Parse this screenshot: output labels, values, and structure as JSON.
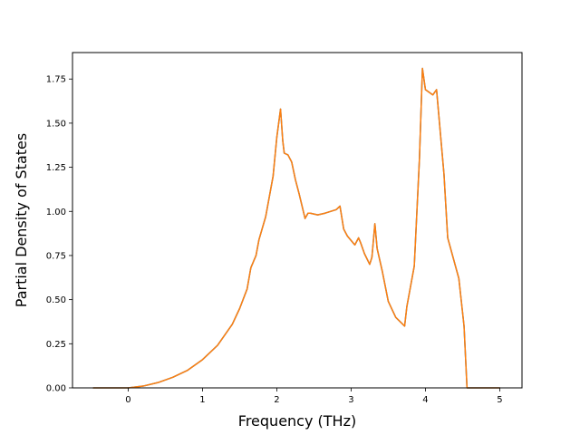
{
  "chart_data": {
    "type": "line",
    "title": "",
    "xlabel": "Frequency (THz)",
    "ylabel": "Partial Density of States",
    "xlim": [
      -0.75,
      5.3
    ],
    "ylim": [
      0,
      1.9
    ],
    "x_ticks": [
      0,
      1,
      2,
      3,
      4,
      5
    ],
    "x_tick_labels": [
      "0",
      "1",
      "2",
      "3",
      "4",
      "5"
    ],
    "y_ticks": [
      0.0,
      0.25,
      0.5,
      0.75,
      1.0,
      1.25,
      1.5,
      1.75
    ],
    "y_tick_labels": [
      "0.00",
      "0.25",
      "0.50",
      "0.75",
      "1.00",
      "1.25",
      "1.50",
      "1.75"
    ],
    "grid": false,
    "legend": "none",
    "series": [
      {
        "color": "#1f77b4",
        "x": [
          -0.47,
          0.0,
          0.2,
          0.4,
          0.6,
          0.8,
          1.0,
          1.2,
          1.4,
          1.5,
          1.6,
          1.65,
          1.72,
          1.76,
          1.85,
          1.95,
          2.0,
          2.05,
          2.08,
          2.1,
          2.15,
          2.2,
          2.25,
          2.3,
          2.38,
          2.42,
          2.45,
          2.55,
          2.65,
          2.8,
          2.85,
          2.9,
          2.95,
          3.05,
          3.1,
          3.13,
          3.18,
          3.25,
          3.28,
          3.32,
          3.35,
          3.42,
          3.5,
          3.6,
          3.72,
          3.75,
          3.85,
          3.92,
          3.96,
          4.0,
          4.1,
          4.15,
          4.25,
          4.3,
          4.45,
          4.52,
          4.56,
          4.6,
          5.0
        ],
        "y": [
          0.0,
          0.0,
          0.01,
          0.03,
          0.06,
          0.1,
          0.16,
          0.24,
          0.36,
          0.45,
          0.56,
          0.68,
          0.75,
          0.84,
          0.97,
          1.2,
          1.42,
          1.58,
          1.4,
          1.33,
          1.32,
          1.28,
          1.18,
          1.1,
          0.96,
          0.99,
          0.99,
          0.98,
          0.99,
          1.01,
          1.03,
          0.9,
          0.86,
          0.81,
          0.85,
          0.82,
          0.76,
          0.7,
          0.74,
          0.93,
          0.79,
          0.66,
          0.49,
          0.4,
          0.35,
          0.46,
          0.69,
          1.3,
          1.81,
          1.69,
          1.66,
          1.69,
          1.21,
          0.85,
          0.62,
          0.35,
          0.0,
          0.0,
          0.0
        ]
      },
      {
        "color": "#ff7f0e",
        "x": [
          -0.47,
          0.0,
          0.2,
          0.4,
          0.6,
          0.8,
          1.0,
          1.2,
          1.4,
          1.5,
          1.6,
          1.65,
          1.72,
          1.76,
          1.85,
          1.95,
          2.0,
          2.05,
          2.08,
          2.1,
          2.15,
          2.2,
          2.25,
          2.3,
          2.38,
          2.42,
          2.45,
          2.55,
          2.65,
          2.8,
          2.85,
          2.9,
          2.95,
          3.05,
          3.1,
          3.13,
          3.18,
          3.25,
          3.28,
          3.32,
          3.35,
          3.42,
          3.5,
          3.6,
          3.72,
          3.75,
          3.85,
          3.92,
          3.96,
          4.0,
          4.1,
          4.15,
          4.25,
          4.3,
          4.45,
          4.52,
          4.56,
          4.6,
          5.0
        ],
        "y": [
          0.0,
          0.0,
          0.01,
          0.03,
          0.06,
          0.1,
          0.16,
          0.24,
          0.36,
          0.45,
          0.56,
          0.68,
          0.75,
          0.84,
          0.97,
          1.2,
          1.42,
          1.58,
          1.4,
          1.33,
          1.32,
          1.28,
          1.18,
          1.1,
          0.96,
          0.99,
          0.99,
          0.98,
          0.99,
          1.01,
          1.03,
          0.9,
          0.86,
          0.81,
          0.85,
          0.82,
          0.76,
          0.7,
          0.74,
          0.93,
          0.79,
          0.66,
          0.49,
          0.4,
          0.35,
          0.46,
          0.69,
          1.3,
          1.81,
          1.69,
          1.66,
          1.69,
          1.21,
          0.85,
          0.62,
          0.35,
          0.0,
          0.0,
          0.0
        ]
      }
    ]
  }
}
